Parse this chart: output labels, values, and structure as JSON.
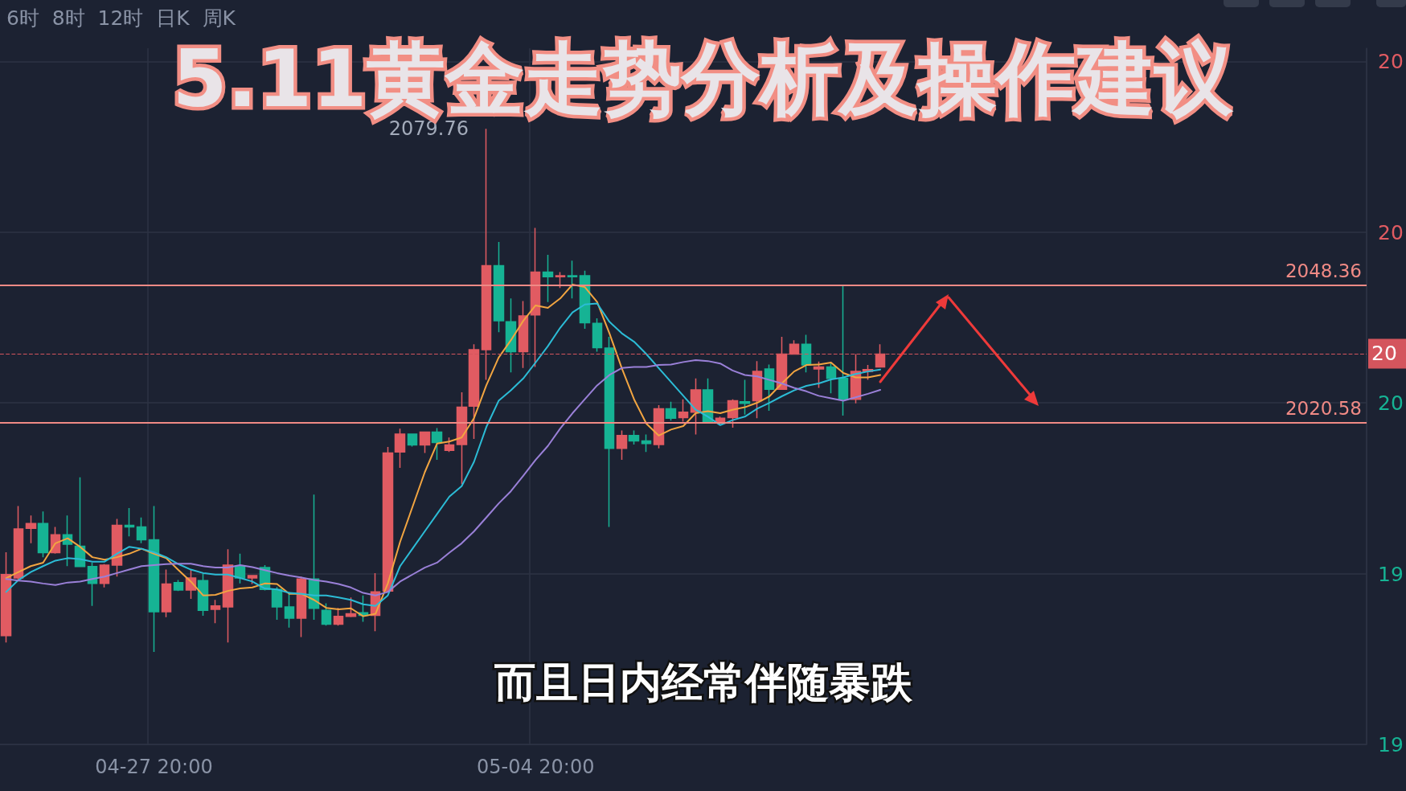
{
  "chart_data": {
    "type": "candlestick",
    "title": "5.11黄金走势分析及操作建议",
    "subtitle": "而且日内经常伴随暴跌",
    "annotations": [
      "6时  8时  12时  日K  周K",
      "2079.76",
      "20",
      "19",
      "19",
      "20",
      "20",
      "20"
    ],
    "categories": [
      null,
      null,
      null,
      null,
      null,
      null,
      null,
      null,
      null,
      null,
      null,
      null,
      "04-27 20:00",
      null,
      null,
      null,
      null,
      null,
      null,
      null,
      null,
      null,
      null,
      null,
      null,
      null,
      null,
      null,
      null,
      null,
      null,
      null,
      null,
      null,
      null,
      null,
      null,
      null,
      null,
      null,
      null,
      null,
      null,
      "05-04 20:00",
      null,
      null,
      null,
      null,
      null,
      null,
      null,
      null,
      null,
      null,
      null,
      null,
      null,
      null,
      null,
      null,
      null,
      null,
      null,
      null,
      null,
      null,
      null,
      null,
      null,
      null,
      null,
      null,
      null,
      null,
      null,
      null,
      null,
      null,
      null,
      null,
      null,
      null,
      null,
      null,
      null,
      null,
      null,
      null,
      null,
      null,
      null,
      null,
      null,
      null,
      null,
      null,
      null,
      null,
      null,
      null,
      null,
      null,
      null,
      null,
      null,
      null,
      null,
      null,
      null,
      null,
      null
    ],
    "ohlc": [
      [
        1977.7,
        1994.5,
        1976.3,
        1990.0
      ],
      [
        1989.3,
        2003.8,
        1988.9,
        1999.2
      ],
      [
        1999.3,
        2001.9,
        1996.3,
        2000.3
      ],
      [
        2000.3,
        2002.7,
        1993.5,
        1994.4
      ],
      [
        1994.4,
        1999.6,
        1994.2,
        1998.0
      ],
      [
        1998.0,
        2001.9,
        1991.7,
        1996.1
      ],
      [
        1995.7,
        2009.6,
        1991.6,
        1991.6
      ],
      [
        1991.6,
        1992.4,
        1983.7,
        1988.2
      ],
      [
        1988.2,
        1992.1,
        1987.4,
        1991.9
      ],
      [
        1991.9,
        2001.2,
        1989.6,
        1999.9
      ],
      [
        1999.9,
        2003.4,
        1997.7,
        1999.6
      ],
      [
        1999.6,
        2001.5,
        1996.3,
        1997.0
      ],
      [
        1997.0,
        2003.8,
        1974.4,
        1982.5
      ],
      [
        1982.5,
        1991.0,
        1981.4,
        1988.1
      ],
      [
        1988.4,
        1988.9,
        1986.7,
        1986.9
      ],
      [
        1986.9,
        1991.0,
        1985.1,
        1989.3
      ],
      [
        1988.8,
        1990.2,
        1981.7,
        1982.8
      ],
      [
        1983.0,
        1984.9,
        1980.2,
        1983.7
      ],
      [
        1983.5,
        1995.1,
        1976.3,
        1991.9
      ],
      [
        1991.7,
        1994.2,
        1988.2,
        1989.3
      ],
      [
        1989.3,
        1989.8,
        1988.1,
        1989.8
      ],
      [
        1991.4,
        1991.9,
        1986.8,
        1987.0
      ],
      [
        1987.0,
        1987.5,
        1980.9,
        1983.5
      ],
      [
        1983.5,
        1986.5,
        1979.3,
        1981.2
      ],
      [
        1981.2,
        1989.6,
        1977.4,
        1989.1
      ],
      [
        1989.1,
        2006.1,
        1980.9,
        1983.2
      ],
      [
        1982.8,
        1984.2,
        1979.7,
        1980.0
      ],
      [
        1980.0,
        1983.3,
        1979.7,
        1981.6
      ],
      [
        1981.6,
        1985.4,
        1981.4,
        1982.1
      ],
      [
        1982.3,
        1985.8,
        1980.5,
        1981.8
      ],
      [
        1981.8,
        1990.3,
        1978.6,
        1986.5
      ],
      [
        1986.7,
        2015.7,
        1986.5,
        2014.5
      ],
      [
        2014.7,
        2019.4,
        2011.5,
        2018.3
      ],
      [
        2018.3,
        2018.3,
        2015.8,
        2016.1
      ],
      [
        2016.1,
        2018.7,
        2014.5,
        2018.7
      ],
      [
        2018.7,
        2019.5,
        2013.1,
        2016.6
      ],
      [
        2015.0,
        2017.6,
        2014.7,
        2016.1
      ],
      [
        2016.2,
        2026.7,
        2008.2,
        2023.7
      ],
      [
        2023.9,
        2036.4,
        2017.3,
        2035.3
      ],
      [
        2035.3,
        2079.76,
        2029.2,
        2052.2
      ],
      [
        2052.2,
        2057.0,
        2038.8,
        2041.1
      ],
      [
        2040.9,
        2045.6,
        2030.7,
        2034.9
      ],
      [
        2034.9,
        2045.1,
        2031.6,
        2042.1
      ],
      [
        2042.3,
        2059.8,
        2031.8,
        2050.9
      ],
      [
        2050.9,
        2054.4,
        2044.9,
        2050.0
      ],
      [
        2050.0,
        2050.9,
        2047.7,
        2050.2
      ],
      [
        2050.2,
        2053.2,
        2045.6,
        2050.0
      ],
      [
        2050.2,
        2051.2,
        2039.5,
        2040.7
      ],
      [
        2040.6,
        2041.6,
        2034.9,
        2035.7
      ],
      [
        2035.6,
        2037.9,
        1999.6,
        2015.4
      ],
      [
        2015.4,
        2019.0,
        2013.1,
        2018.0
      ],
      [
        2018.0,
        2019.0,
        2016.2,
        2016.9
      ],
      [
        2016.9,
        2018.2,
        2014.7,
        2016.4
      ],
      [
        2016.2,
        2024.1,
        2015.4,
        2023.4
      ],
      [
        2023.4,
        2024.8,
        2021.0,
        2021.5
      ],
      [
        2021.6,
        2025.3,
        2020.8,
        2022.7
      ],
      [
        2022.7,
        2029.5,
        2018.2,
        2027.2
      ],
      [
        2027.2,
        2029.5,
        2020.8,
        2020.8
      ],
      [
        2020.6,
        2021.8,
        2020.2,
        2021.5
      ],
      [
        2021.6,
        2025.3,
        2019.6,
        2025.0
      ],
      [
        2024.8,
        2029.2,
        2022.2,
        2024.5
      ],
      [
        2025.0,
        2033.0,
        2021.5,
        2030.9
      ],
      [
        2031.4,
        2032.3,
        2023.0,
        2027.3
      ],
      [
        2027.3,
        2037.9,
        2027.3,
        2034.4
      ],
      [
        2034.4,
        2037.2,
        2034.3,
        2036.4
      ],
      [
        2036.4,
        2038.3,
        2030.7,
        2032.2
      ],
      [
        2031.4,
        2032.9,
        2027.6,
        2031.8
      ],
      [
        2031.8,
        2032.7,
        2026.5,
        2029.5
      ],
      [
        2029.5,
        2048.1,
        2022.0,
        2025.3
      ],
      [
        2025.3,
        2034.4,
        2024.5,
        2030.9
      ],
      [
        2030.9,
        2032.2,
        2029.2,
        2031.3
      ],
      [
        2031.8,
        2036.4,
        2031.8,
        2034.4
      ],
      null,
      null,
      null,
      null,
      null,
      null,
      null,
      null,
      null,
      null,
      null,
      null,
      null,
      null,
      null,
      null,
      null,
      null,
      null,
      null,
      null,
      null,
      null,
      null,
      null,
      null,
      null,
      null,
      null,
      null,
      null,
      null,
      null,
      null,
      null,
      null,
      null,
      null,
      null
    ],
    "colors": [
      "#e15b62",
      "#e15b62",
      "#e15b62",
      "#16b394",
      "#e15b62",
      "#16b394",
      "#16b394",
      "#16b394",
      "#e15b62",
      "#e15b62",
      "#16b394",
      "#16b394",
      "#16b394",
      "#e15b62",
      "#16b394",
      "#e15b62",
      "#16b394",
      "#e15b62",
      "#e15b62",
      "#16b394",
      "#e15b62",
      "#16b394",
      "#16b394",
      "#16b394",
      "#e15b62",
      "#16b394",
      "#16b394",
      "#e15b62",
      "#e15b62",
      "#16b394",
      "#e15b62",
      "#e15b62",
      "#e15b62",
      "#16b394",
      "#e15b62",
      "#16b394",
      "#e15b62",
      "#e15b62",
      "#e15b62",
      "#e15b62",
      "#16b394",
      "#16b394",
      "#e15b62",
      "#e15b62",
      "#16b394",
      "#e15b62",
      "#16b394",
      "#16b394",
      "#16b394",
      "#16b394",
      "#e15b62",
      "#16b394",
      "#16b394",
      "#e15b62",
      "#16b394",
      "#e15b62",
      "#e15b62",
      "#16b394",
      "#e15b62",
      "#e15b62",
      "#16b394",
      "#e15b62",
      "#16b394",
      "#e15b62",
      "#e15b62",
      "#16b394",
      "#e15b62",
      "#16b394",
      "#16b394",
      "#e15b62",
      "#e15b62",
      "#e15b62",
      null,
      null,
      null,
      null,
      null,
      null,
      null,
      null,
      null,
      null,
      null,
      null,
      null,
      null,
      null,
      null,
      null,
      null,
      null,
      null,
      null,
      null,
      null,
      null,
      null,
      null,
      null,
      null,
      null,
      null,
      null,
      null,
      null,
      null,
      null,
      null,
      null,
      null,
      null
    ],
    "series": [
      {
        "type": "line",
        "color": "#f2a541",
        "values": [
          1989.3,
          1990.5,
          1991.7,
          1992.4,
          1996.3,
          1997.3,
          1995.6,
          1993.5,
          1993.0,
          1993.5,
          1994.2,
          1995.2,
          1994.2,
          1993.3,
          1990.9,
          1988.6,
          1985.8,
          1985.9,
          1986.7,
          1987.2,
          1987.4,
          1988.2,
          1988.1,
          1986.1,
          1986.1,
          1984.9,
          1983.3,
          1983.0,
          1983.2,
          1981.6,
          1982.1,
          1988.2,
          1996.6,
          2003.6,
          2010.6,
          2016.4,
          2016.8,
          2017.6,
          2021.5,
          2028.1,
          2033.7,
          2037.2,
          2041.1,
          2044.2,
          2043.7,
          2045.6,
          2048.4,
          2047.9,
          2044.9,
          2038.6,
          2031.6,
          2025.3,
          2020.4,
          2018.0,
          2019.2,
          2019.9,
          2022.5,
          2022.9,
          2022.5,
          2023.2,
          2023.7,
          2024.6,
          2025.9,
          2028.5,
          2030.9,
          2032.2,
          2032.3,
          2032.7,
          2030.6,
          2029.7,
          2029.7,
          2030.2,
          null,
          null,
          null,
          null,
          null,
          null,
          null,
          null,
          null,
          null,
          null,
          null,
          null,
          null,
          null,
          null,
          null,
          null,
          null,
          null,
          null,
          null,
          null,
          null,
          null,
          null,
          null,
          null,
          null,
          null,
          null,
          null,
          null,
          null,
          null,
          null,
          null,
          null,
          null
        ]
      },
      {
        "type": "line",
        "color": "#2cbcd6",
        "values": [
          1986.5,
          1988.9,
          1990.5,
          1991.7,
          1992.8,
          1993.3,
          1993.1,
          1992.6,
          1992.6,
          1994.2,
          1995.6,
          1995.2,
          1994.5,
          1993.5,
          1992.1,
          1991.0,
          1990.3,
          1990.0,
          1990.0,
          1989.3,
          1988.6,
          1987.2,
          1987.0,
          1986.3,
          1986.1,
          1985.8,
          1985.8,
          1985.4,
          1984.9,
          1984.0,
          1983.7,
          1985.8,
          1991.7,
          1995.2,
          1998.7,
          2002.2,
          2005.7,
          2007.8,
          2012.7,
          2019.7,
          2025.0,
          2027.1,
          2029.5,
          2032.7,
          2036.0,
          2039.7,
          2042.8,
          2044.4,
          2044.6,
          2040.9,
          2038.6,
          2036.9,
          2034.4,
          2031.6,
          2028.8,
          2026.0,
          2023.2,
          2021.8,
          2020.1,
          2021.1,
          2021.8,
          2023.4,
          2024.6,
          2025.9,
          2027.1,
          2028.0,
          2028.5,
          2029.3,
          2029.7,
          2030.4,
          2030.9,
          2031.3,
          null,
          null,
          null,
          null,
          null,
          null,
          null,
          null,
          null,
          null,
          null,
          null,
          null,
          null,
          null,
          null,
          null,
          null,
          null,
          null,
          null,
          null,
          null,
          null,
          null,
          null,
          null,
          null,
          null,
          null,
          null,
          null,
          null,
          null,
          null,
          null,
          null,
          null,
          null
        ]
      },
      {
        "type": "line",
        "color": "#9a80d8",
        "values": [
          1989.1,
          1988.8,
          1988.6,
          1988.2,
          1987.9,
          1988.4,
          1988.6,
          1989.1,
          1989.6,
          1990.3,
          1991.0,
          1991.7,
          1991.9,
          1992.1,
          1992.2,
          1992.2,
          1991.7,
          1991.4,
          1991.4,
          1991.9,
          1991.5,
          1990.9,
          1990.3,
          1989.8,
          1989.4,
          1988.9,
          1988.6,
          1988.1,
          1987.4,
          1986.3,
          1985.8,
          1986.5,
          1988.6,
          1990.0,
          1991.4,
          1992.4,
          1994.4,
          1996.3,
          1998.7,
          2001.5,
          2004.3,
          2006.8,
          2009.9,
          2013.1,
          2015.9,
          2019.4,
          2022.5,
          2025.3,
          2028.1,
          2030.2,
          2031.6,
          2031.8,
          2031.8,
          2032.2,
          2032.3,
          2032.8,
          2033.2,
          2033.0,
          2032.5,
          2031.1,
          2030.2,
          2029.9,
          2029.2,
          2028.5,
          2027.6,
          2026.9,
          2026.0,
          2025.5,
          2025.0,
          2025.7,
          2026.4,
          2027.2,
          null,
          null,
          null,
          null,
          null,
          null,
          null,
          null,
          null,
          null,
          null,
          null,
          null,
          null,
          null,
          null,
          null,
          null,
          null,
          null,
          null,
          null,
          null,
          null,
          null,
          null,
          null,
          null,
          null,
          null,
          null,
          null,
          null,
          null,
          null,
          null,
          null,
          null,
          null
        ]
      }
    ],
    "ylim": [
      1955.8,
      2096
    ],
    "yticks": [
      {
        "value": 1955.8,
        "label": null
      },
      {
        "value": 1990.1,
        "label": null
      },
      {
        "value": 2024.6,
        "label": null
      },
      {
        "value": 2058.9,
        "label": null
      },
      {
        "value": 2093.3,
        "label": null
      }
    ],
    "ref_lines": [
      {
        "axis": "y",
        "value": 2048.36,
        "label": "2048.36",
        "color": "#f08a85",
        "line_style": "solid"
      },
      {
        "axis": "y",
        "value": 2020.58,
        "label": "2020.58",
        "color": "#f08a85",
        "line_style": "solid"
      },
      {
        "axis": "y",
        "value": 2034.5,
        "label": null,
        "color": "#d4555d",
        "line_style": "dashed"
      }
    ],
    "grid": true,
    "marker": "none",
    "line_style": "solid"
  }
}
